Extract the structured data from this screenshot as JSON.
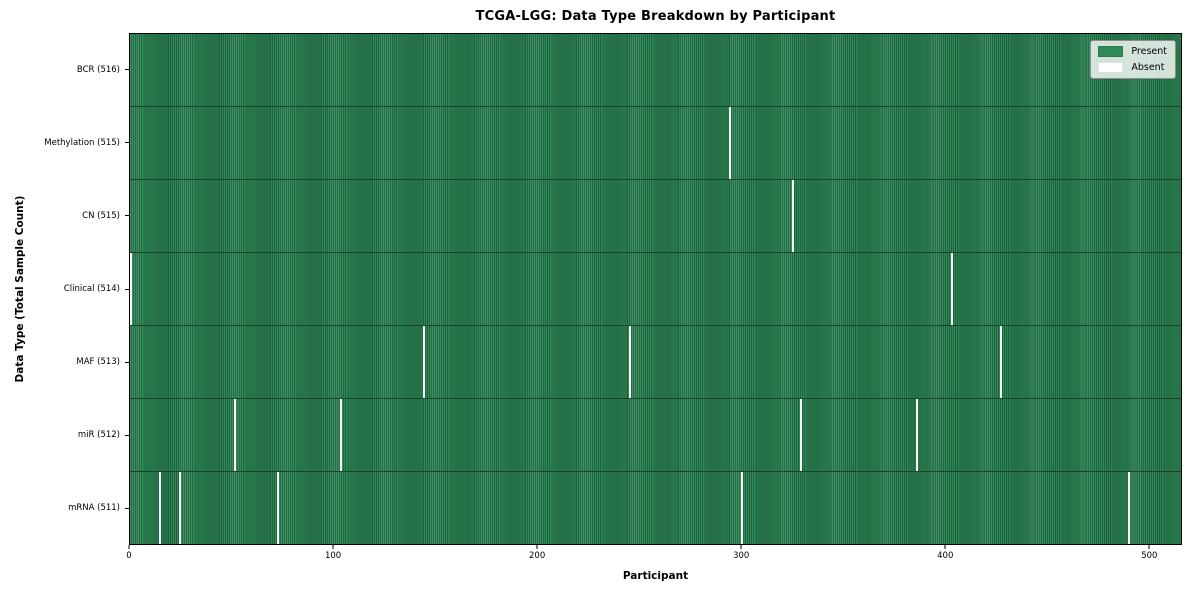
{
  "title": "TCGA-LGG: Data Type Breakdown by Participant",
  "xlabel": "Participant",
  "ylabel": "Data Type (Total Sample Count)",
  "legend": {
    "present_label": "Present",
    "absent_label": "Absent",
    "position": "upper right"
  },
  "colors": {
    "present": "#2e8b57",
    "present_edge": "#20613e",
    "absent": "#ffffff"
  },
  "chart_data": {
    "type": "heatmap",
    "title": "TCGA-LGG: Data Type Breakdown by Participant",
    "xlabel": "Participant",
    "ylabel": "Data Type (Total Sample Count)",
    "xlim": [
      0,
      516
    ],
    "x_ticks": [
      0,
      100,
      200,
      300,
      400,
      500
    ],
    "grid": false,
    "legend_entries": [
      "Present",
      "Absent"
    ],
    "legend_position": "upper right",
    "n_participants": 516,
    "rows": [
      {
        "label": "BCR (516)",
        "data_type": "BCR",
        "sample_count": 516,
        "absent_participants": []
      },
      {
        "label": "Methylation (515)",
        "data_type": "Methylation",
        "sample_count": 515,
        "absent_participants": [
          294
        ]
      },
      {
        "label": "CN (515)",
        "data_type": "CN",
        "sample_count": 515,
        "absent_participants": [
          325
        ]
      },
      {
        "label": "Clinical (514)",
        "data_type": "Clinical",
        "sample_count": 514,
        "absent_participants": [
          0,
          403
        ]
      },
      {
        "label": "MAF (513)",
        "data_type": "MAF",
        "sample_count": 513,
        "absent_participants": [
          144,
          245,
          427
        ]
      },
      {
        "label": "miR (512)",
        "data_type": "miR",
        "sample_count": 512,
        "absent_participants": [
          51,
          103,
          329,
          386
        ]
      },
      {
        "label": "mRNA (511)",
        "data_type": "mRNA",
        "sample_count": 511,
        "absent_participants": [
          14,
          24,
          72,
          300,
          490
        ]
      }
    ]
  }
}
